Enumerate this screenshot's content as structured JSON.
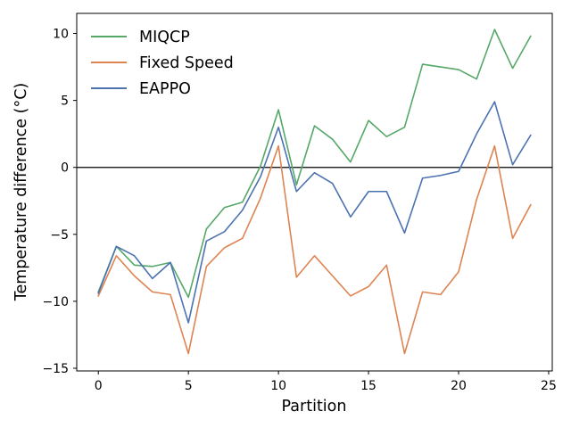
{
  "chart_data": {
    "type": "line",
    "xlabel": "Partition",
    "ylabel": "Temperature difference (°C)",
    "xlim": [
      -1.2,
      25.2
    ],
    "ylim": [
      -15.2,
      11.5
    ],
    "xticks": [
      0,
      5,
      10,
      15,
      20,
      25
    ],
    "yticks": [
      -15,
      -10,
      -5,
      0,
      5,
      10
    ],
    "xtick_labels": [
      "0",
      "5",
      "10",
      "15",
      "20",
      "25"
    ],
    "ytick_labels": [
      "−15",
      "−10",
      "−5",
      "0",
      "5",
      "10"
    ],
    "zero_line": true,
    "grid": false,
    "legend_position": "top-left",
    "x": [
      0,
      1,
      2,
      3,
      4,
      5,
      6,
      7,
      8,
      9,
      10,
      11,
      12,
      13,
      14,
      15,
      16,
      17,
      18,
      19,
      20,
      21,
      22,
      23,
      24
    ],
    "series": [
      {
        "name": "MIQCP",
        "color": "#55a868",
        "values": [
          -9.3,
          -5.9,
          -7.3,
          -7.4,
          -7.1,
          -9.7,
          -4.6,
          -3.0,
          -2.6,
          0.1,
          4.3,
          -1.3,
          3.1,
          2.1,
          0.4,
          3.5,
          2.3,
          3.0,
          7.7,
          7.5,
          7.3,
          6.6,
          10.3,
          7.4,
          9.8
        ]
      },
      {
        "name": "Fixed Speed",
        "color": "#dd8452",
        "values": [
          -9.6,
          -6.6,
          -8.1,
          -9.3,
          -9.5,
          -13.9,
          -7.4,
          -6.0,
          -5.3,
          -2.3,
          1.6,
          -8.2,
          -6.6,
          -8.1,
          -9.6,
          -8.9,
          -7.3,
          -13.9,
          -9.3,
          -9.5,
          -7.8,
          -2.4,
          1.6,
          -5.3,
          -2.8
        ]
      },
      {
        "name": "EAPPO",
        "color": "#4c72b0",
        "values": [
          -9.4,
          -5.9,
          -6.6,
          -8.3,
          -7.1,
          -11.6,
          -5.5,
          -4.8,
          -3.2,
          -0.7,
          3.0,
          -1.8,
          -0.4,
          -1.2,
          -3.7,
          -1.8,
          -1.8,
          -4.9,
          -0.8,
          -0.6,
          -0.3,
          2.5,
          4.9,
          0.2,
          2.4
        ]
      }
    ]
  }
}
